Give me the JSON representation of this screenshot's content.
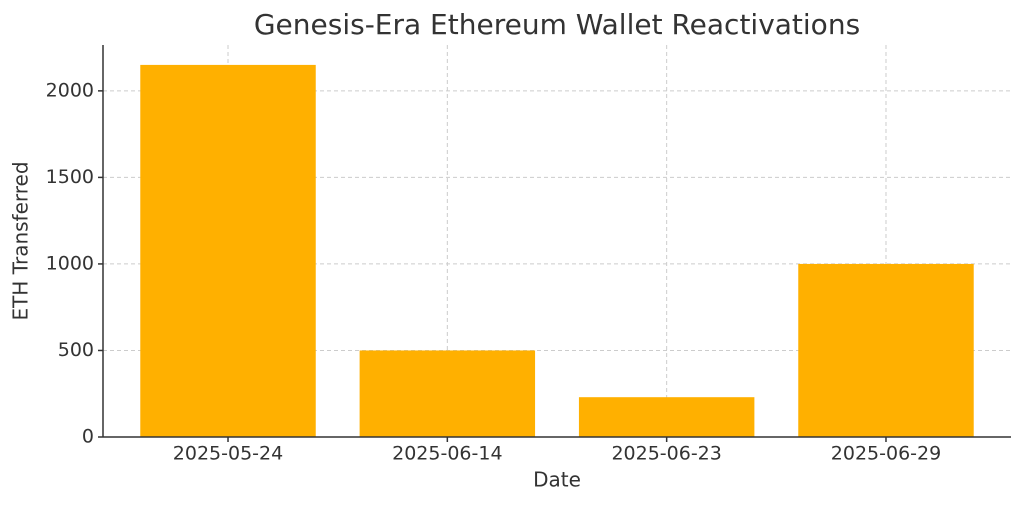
{
  "chart_data": {
    "type": "bar",
    "title": "Genesis-Era Ethereum Wallet Reactivations",
    "x_label": "Date",
    "y_label": "ETH Transferred",
    "categories": [
      "2025-05-24",
      "2025-06-14",
      "2025-06-23",
      "2025-06-29"
    ],
    "values": [
      2150,
      500,
      230,
      1000
    ],
    "color": "#ffb000",
    "ylim": [
      0,
      2265
    ],
    "yticks": [
      0,
      500,
      1000,
      1500,
      2000
    ],
    "grid": true
  }
}
